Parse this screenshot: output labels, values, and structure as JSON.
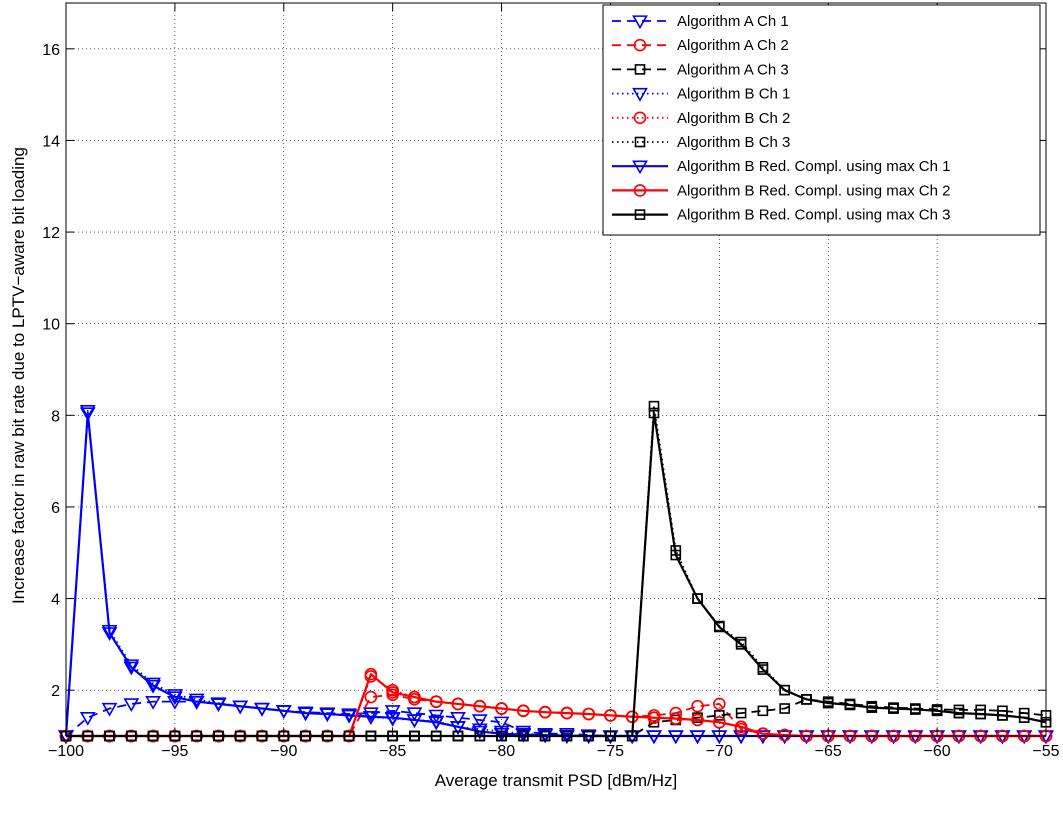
{
  "chart_data": {
    "type": "line",
    "title": "",
    "xlabel": "Average transmit PSD [dBm/Hz]",
    "ylabel": "Increase factor in raw bit rate due to LPTV−aware bit loading",
    "xlim": [
      -100,
      -55
    ],
    "ylim": [
      1,
      17
    ],
    "xticks": [
      -100,
      -95,
      -90,
      -85,
      -80,
      -75,
      -70,
      -65,
      -60,
      -55
    ],
    "xtick_labels": [
      "−100",
      "−95",
      "−90",
      "−85",
      "−80",
      "−75",
      "−70",
      "−65",
      "−60",
      "−55"
    ],
    "yticks": [
      2,
      4,
      6,
      8,
      10,
      12,
      14,
      16
    ],
    "ytick_labels": [
      "2",
      "4",
      "6",
      "8",
      "10",
      "12",
      "14",
      "16"
    ],
    "grid": true,
    "legend_position": "top-right",
    "series": [
      {
        "name": "Algorithm A Ch 1",
        "color": "#0000ff",
        "line": "dashed",
        "marker": "triangle-down",
        "x": [
          -100,
          -99,
          -98,
          -97,
          -96,
          -95,
          -94,
          -93,
          -92,
          -91,
          -90,
          -89,
          -88,
          -87,
          -86,
          -85,
          -84,
          -83,
          -82,
          -81,
          -80,
          -79,
          -78,
          -77,
          -76,
          -75,
          -74,
          -73,
          -72,
          -71,
          -70,
          -69,
          -68,
          -67,
          -66,
          -65,
          -64,
          -63,
          -62,
          -61,
          -60,
          -59,
          -58,
          -57,
          -56,
          -55
        ],
        "y": [
          1,
          1.4,
          1.6,
          1.7,
          1.75,
          1.75,
          1.75,
          1.7,
          1.65,
          1.6,
          1.55,
          1.52,
          1.5,
          1.48,
          1.5,
          1.55,
          1.5,
          1.45,
          1.4,
          1.35,
          1.3,
          1.1,
          1.05,
          1.05,
          1.02,
          1,
          1,
          1,
          1,
          1,
          1,
          1,
          1,
          1,
          1,
          1,
          1,
          1,
          1,
          1,
          1,
          1,
          1,
          1,
          1,
          1
        ]
      },
      {
        "name": "Algorithm A Ch 2",
        "color": "#ff0000",
        "line": "dashed",
        "marker": "circle",
        "x": [
          -100,
          -99,
          -98,
          -97,
          -96,
          -95,
          -94,
          -93,
          -92,
          -91,
          -90,
          -89,
          -88,
          -87,
          -86,
          -85,
          -84,
          -83,
          -82,
          -81,
          -80,
          -79,
          -78,
          -77,
          -76,
          -75,
          -74,
          -73,
          -72,
          -71,
          -70,
          -69,
          -68,
          -67,
          -66,
          -65,
          -64,
          -63,
          -62,
          -61,
          -60,
          -59,
          -58,
          -57,
          -56,
          -55
        ],
        "y": [
          1,
          1,
          1,
          1,
          1,
          1,
          1,
          1,
          1,
          1,
          1,
          1,
          1,
          1,
          1.85,
          1.9,
          1.8,
          1.75,
          1.7,
          1.65,
          1.6,
          1.55,
          1.52,
          1.5,
          1.48,
          1.45,
          1.42,
          1.45,
          1.5,
          1.65,
          1.7,
          1.15,
          1.05,
          1.02,
          1,
          1,
          1,
          1,
          1,
          1,
          1,
          1,
          1,
          1,
          1,
          1
        ]
      },
      {
        "name": "Algorithm A Ch 3",
        "color": "#000000",
        "line": "dashed",
        "marker": "square",
        "x": [
          -100,
          -99,
          -98,
          -97,
          -96,
          -95,
          -94,
          -93,
          -92,
          -91,
          -90,
          -89,
          -88,
          -87,
          -86,
          -85,
          -84,
          -83,
          -82,
          -81,
          -80,
          -79,
          -78,
          -77,
          -76,
          -75,
          -74,
          -73,
          -72,
          -71,
          -70,
          -69,
          -68,
          -67,
          -66,
          -65,
          -64,
          -63,
          -62,
          -61,
          -60,
          -59,
          -58,
          -57,
          -56,
          -55
        ],
        "y": [
          1,
          1,
          1,
          1,
          1,
          1,
          1,
          1,
          1,
          1,
          1,
          1,
          1,
          1,
          1,
          1,
          1,
          1,
          1,
          1,
          1,
          1,
          1,
          1,
          1,
          1,
          1,
          1.3,
          1.35,
          1.4,
          1.45,
          1.5,
          1.55,
          1.6,
          1.8,
          1.75,
          1.7,
          1.65,
          1.62,
          1.6,
          1.58,
          1.57,
          1.57,
          1.55,
          1.5,
          1.45
        ]
      },
      {
        "name": "Algorithm B Ch 1",
        "color": "#0000ff",
        "line": "dotted",
        "marker": "triangle-down",
        "x": [
          -100,
          -99,
          -98,
          -97,
          -96,
          -95,
          -94,
          -93,
          -92,
          -91,
          -90,
          -89,
          -88,
          -87,
          -86,
          -85,
          -84,
          -83,
          -82,
          -81,
          -80,
          -79,
          -78,
          -77,
          -76,
          -75,
          -74,
          -73,
          -72,
          -71,
          -70,
          -69,
          -68,
          -67,
          -66,
          -65,
          -64,
          -63,
          -62,
          -61,
          -60,
          -59,
          -58,
          -57,
          -56,
          -55
        ],
        "y": [
          1,
          8.1,
          3.3,
          2.55,
          2.15,
          1.9,
          1.8,
          1.72,
          1.65,
          1.6,
          1.55,
          1.5,
          1.48,
          1.45,
          1.42,
          1.38,
          1.35,
          1.32,
          1.2,
          1.15,
          1.1,
          1.05,
          1.02,
          1,
          1,
          1,
          1,
          1,
          1,
          1,
          1,
          1,
          1,
          1,
          1,
          1,
          1,
          1,
          1,
          1,
          1,
          1,
          1,
          1,
          1,
          1
        ]
      },
      {
        "name": "Algorithm B Ch 2",
        "color": "#ff0000",
        "line": "dotted",
        "marker": "circle",
        "x": [
          -100,
          -99,
          -98,
          -97,
          -96,
          -95,
          -94,
          -93,
          -92,
          -91,
          -90,
          -89,
          -88,
          -87,
          -86,
          -85,
          -84,
          -83,
          -82,
          -81,
          -80,
          -79,
          -78,
          -77,
          -76,
          -75,
          -74,
          -73,
          -72,
          -71,
          -70,
          -69,
          -68,
          -67,
          -66,
          -65,
          -64,
          -63,
          -62,
          -61,
          -60,
          -59,
          -58,
          -57,
          -56,
          -55
        ],
        "y": [
          1,
          1,
          1,
          1,
          1,
          1,
          1,
          1,
          1,
          1,
          1,
          1,
          1,
          1,
          2.3,
          2,
          1.85,
          1.75,
          1.7,
          1.65,
          1.6,
          1.55,
          1.52,
          1.5,
          1.48,
          1.45,
          1.42,
          1.4,
          1.38,
          1.35,
          1.3,
          1.2,
          1.05,
          1.02,
          1,
          1,
          1,
          1,
          1,
          1,
          1,
          1,
          1,
          1,
          1,
          1
        ]
      },
      {
        "name": "Algorithm B Ch 3",
        "color": "#000000",
        "line": "dotted",
        "marker": "square",
        "x": [
          -100,
          -99,
          -98,
          -97,
          -96,
          -95,
          -94,
          -93,
          -92,
          -91,
          -90,
          -89,
          -88,
          -87,
          -86,
          -85,
          -84,
          -83,
          -82,
          -81,
          -80,
          -79,
          -78,
          -77,
          -76,
          -75,
          -74,
          -73,
          -72,
          -71,
          -70,
          -69,
          -68,
          -67,
          -66,
          -65,
          -64,
          -63,
          -62,
          -61,
          -60,
          -59,
          -58,
          -57,
          -56,
          -55
        ],
        "y": [
          1,
          1,
          1,
          1,
          1,
          1,
          1,
          1,
          1,
          1,
          1,
          1,
          1,
          1,
          1,
          1,
          1,
          1,
          1,
          1,
          1,
          1,
          1,
          1,
          1,
          1,
          1,
          8.2,
          5.05,
          4,
          3.4,
          3.05,
          2.5,
          2,
          1.8,
          1.72,
          1.68,
          1.62,
          1.6,
          1.58,
          1.55,
          1.5,
          1.48,
          1.45,
          1.4,
          1.3
        ]
      },
      {
        "name": "Algorithm B Red. Compl. using max Ch 1",
        "color": "#0000ff",
        "line": "solid",
        "marker": "triangle-down",
        "x": [
          -100,
          -99,
          -98,
          -97,
          -96,
          -95,
          -94,
          -93,
          -92,
          -91,
          -90,
          -89,
          -88,
          -87,
          -86,
          -85,
          -84,
          -83,
          -82,
          -81,
          -80,
          -79,
          -78,
          -77,
          -76,
          -75,
          -74,
          -73,
          -72,
          -71,
          -70,
          -69,
          -68,
          -67,
          -66,
          -65,
          -64,
          -63,
          -62,
          -61,
          -60,
          -59,
          -58,
          -57,
          -56,
          -55
        ],
        "y": [
          1,
          8.05,
          3.25,
          2.5,
          2.1,
          1.85,
          1.75,
          1.7,
          1.65,
          1.6,
          1.55,
          1.5,
          1.48,
          1.45,
          1.42,
          1.4,
          1.35,
          1.3,
          1.2,
          1.1,
          1.05,
          1.03,
          1.02,
          1.01,
          1,
          1,
          1,
          1,
          1,
          1,
          1,
          1,
          1,
          1,
          1,
          1,
          1,
          1,
          1,
          1,
          1,
          1,
          1,
          1,
          1,
          1
        ]
      },
      {
        "name": "Algorithm B Red. Compl. using max Ch 2",
        "color": "#ff0000",
        "line": "solid",
        "marker": "circle",
        "x": [
          -100,
          -99,
          -98,
          -97,
          -96,
          -95,
          -94,
          -93,
          -92,
          -91,
          -90,
          -89,
          -88,
          -87,
          -86,
          -85,
          -84,
          -83,
          -82,
          -81,
          -80,
          -79,
          -78,
          -77,
          -76,
          -75,
          -74,
          -73,
          -72,
          -71,
          -70,
          -69,
          -68,
          -67,
          -66,
          -65,
          -64,
          -63,
          -62,
          -61,
          -60,
          -59,
          -58,
          -57,
          -56,
          -55
        ],
        "y": [
          1,
          1,
          1,
          1,
          1,
          1,
          1,
          1,
          1,
          1,
          1,
          1,
          1,
          1,
          2.35,
          1.95,
          1.85,
          1.75,
          1.7,
          1.65,
          1.6,
          1.55,
          1.52,
          1.5,
          1.48,
          1.45,
          1.42,
          1.4,
          1.38,
          1.35,
          1.3,
          1.2,
          1.05,
          1.02,
          1,
          1,
          1,
          1,
          1,
          1,
          1,
          1,
          1,
          1,
          1,
          1
        ]
      },
      {
        "name": "Algorithm B Red. Compl. using max Ch 3",
        "color": "#000000",
        "line": "solid",
        "marker": "square",
        "x": [
          -100,
          -99,
          -98,
          -97,
          -96,
          -95,
          -94,
          -93,
          -92,
          -91,
          -90,
          -89,
          -88,
          -87,
          -86,
          -85,
          -84,
          -83,
          -82,
          -81,
          -80,
          -79,
          -78,
          -77,
          -76,
          -75,
          -74,
          -73,
          -72,
          -71,
          -70,
          -69,
          -68,
          -67,
          -66,
          -65,
          -64,
          -63,
          -62,
          -61,
          -60,
          -59,
          -58,
          -57,
          -56,
          -55
        ],
        "y": [
          1,
          1,
          1,
          1,
          1,
          1,
          1,
          1,
          1,
          1,
          1,
          1,
          1,
          1,
          1,
          1,
          1,
          1,
          1,
          1,
          1,
          1,
          1,
          1,
          1,
          1,
          1,
          8.05,
          4.95,
          4,
          3.38,
          3,
          2.45,
          2,
          1.8,
          1.72,
          1.68,
          1.62,
          1.6,
          1.58,
          1.55,
          1.5,
          1.48,
          1.45,
          1.4,
          1.3
        ]
      }
    ]
  }
}
